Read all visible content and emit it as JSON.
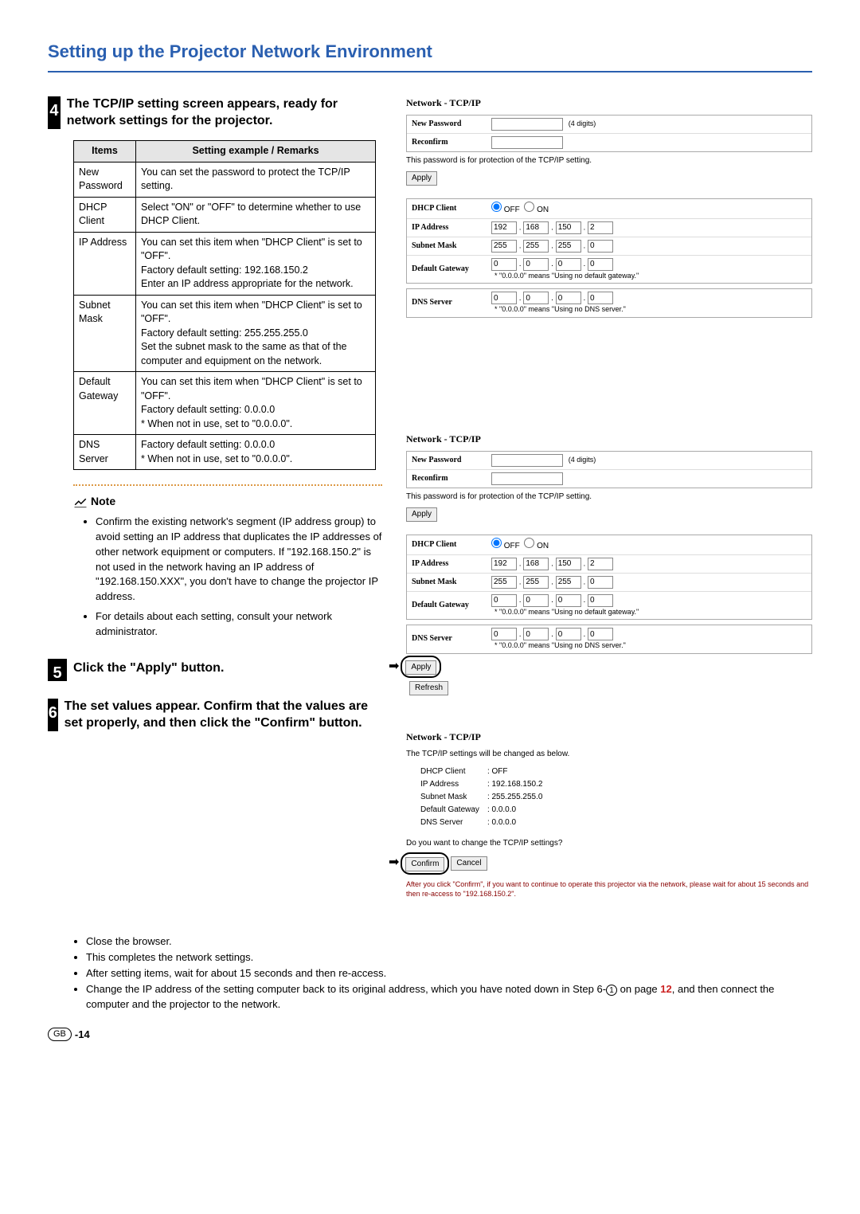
{
  "page_title": "Setting up the Projector Network Environment",
  "step4": {
    "title": "The TCP/IP setting screen appears, ready for network settings for the projector.",
    "num": "4",
    "table": {
      "head": {
        "c1": "Items",
        "c2": "Setting example / Remarks"
      },
      "rows": [
        {
          "c1": "New Password",
          "c2": "You can set the password to protect the TCP/IP setting."
        },
        {
          "c1": "DHCP Client",
          "c2": "Select \"ON\" or \"OFF\" to determine whether to use DHCP Client."
        },
        {
          "c1": "IP Address",
          "c2": "You can set this item when \"DHCP Client\" is set to \"OFF\".\nFactory default setting: 192.168.150.2\nEnter an IP address appropriate for the network."
        },
        {
          "c1": "Subnet Mask",
          "c2": "You can set this item when \"DHCP Client\" is set to \"OFF\".\nFactory default setting: 255.255.255.0\nSet the subnet mask to the same as that of the computer and equipment on the network."
        },
        {
          "c1": "Default Gateway",
          "c2": "You can set this item when \"DHCP Client\" is set to \"OFF\".\nFactory default setting: 0.0.0.0\n* When not in use, set to \"0.0.0.0\"."
        },
        {
          "c1": "DNS Server",
          "c2": "Factory default setting: 0.0.0.0\n* When not in use, set to \"0.0.0.0\"."
        }
      ]
    }
  },
  "note": {
    "label": "Note",
    "items": [
      "Confirm the existing network's segment (IP address group) to avoid setting an IP address that duplicates the IP addresses of other network equipment or computers. If \"192.168.150.2\" is not used in the network having an IP address of \"192.168.150.XXX\", you don't have to change the projector IP address.",
      "For details about each setting, consult your network administrator."
    ]
  },
  "step5": {
    "num": "5",
    "title": "Click the \"Apply\" button."
  },
  "step6": {
    "num": "6",
    "title": "The set values appear. Confirm that the values are set properly, and then click the \"Confirm\" button."
  },
  "panel": {
    "title": "Network - TCP/IP",
    "new_password": "New Password",
    "reconfirm": "Reconfirm",
    "digits_hint": "(4 digits)",
    "pw_note": "This password is for protection of the TCP/IP setting.",
    "apply": "Apply",
    "refresh": "Refresh",
    "dhcp_client": "DHCP Client",
    "off": "OFF",
    "on": "ON",
    "ip_address": "IP Address",
    "subnet_mask": "Subnet Mask",
    "default_gateway": "Default Gateway",
    "dns_server": "DNS Server",
    "gw_note": "* \"0.0.0.0\" means \"Using no default gateway.\"",
    "dns_note": "* \"0.0.0.0\" means \"Using no DNS server.\"",
    "ip": [
      "192",
      "168",
      "150",
      "2"
    ],
    "mask": [
      "255",
      "255",
      "255",
      "0"
    ],
    "zeros": [
      "0",
      "0",
      "0",
      "0"
    ]
  },
  "confirm_panel": {
    "title": "Network - TCP/IP",
    "intro": "The TCP/IP settings will be changed as below.",
    "rows": [
      [
        "DHCP Client",
        ": OFF"
      ],
      [
        "IP Address",
        ": 192.168.150.2"
      ],
      [
        "Subnet Mask",
        ": 255.255.255.0"
      ],
      [
        "Default Gateway",
        ": 0.0.0.0"
      ],
      [
        "DNS Server",
        ": 0.0.0.0"
      ]
    ],
    "question": "Do you want to change the TCP/IP settings?",
    "confirm": "Confirm",
    "cancel": "Cancel",
    "after": "After you click \"Confirm\", if you want to continue to operate this projector via the network, please wait for about 15 seconds and then re-access to \"192.168.150.2\"."
  },
  "bottom": {
    "items_pre": [
      "Close the browser.",
      "This completes the network settings.",
      "After setting items, wait for about 15 seconds and then re-access."
    ],
    "last_pre": "Change the IP address of the setting computer back to its original address, which you have noted down in Step 6-",
    "circled": "1",
    "mid": " on page ",
    "page": "12",
    "last_post": ", and then connect the computer and the projector to the network."
  },
  "footer": {
    "badge": "GB",
    "page": "-14"
  }
}
